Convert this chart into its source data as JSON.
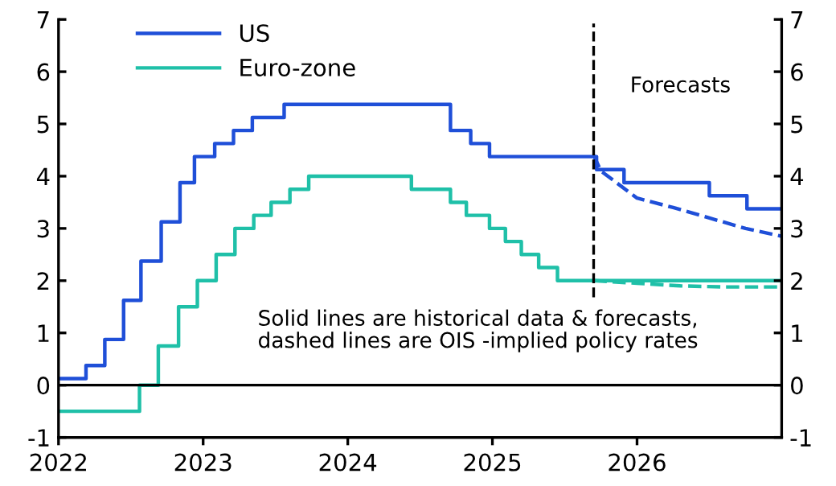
{
  "chart_data": {
    "type": "step",
    "xlim": [
      2022,
      2027
    ],
    "xticks": [
      2022,
      2023,
      2024,
      2025,
      2026
    ],
    "ylim": [
      -1,
      7
    ],
    "yticks": [
      -1,
      0,
      1,
      2,
      3,
      4,
      5,
      6,
      7
    ],
    "y2lim": [
      -1,
      7
    ],
    "y2ticks": [
      -1,
      0,
      1,
      2,
      3,
      4,
      5,
      6,
      7
    ],
    "grid": false,
    "legend": "top left",
    "marker": "none",
    "series": [
      {
        "name": "US",
        "color": "#1f4fd8",
        "line_style": "solid",
        "x": [
          2022,
          2022.19,
          2022.32,
          2022.45,
          2022.57,
          2022.71,
          2022.84,
          2022.94,
          2023.08,
          2023.21,
          2023.34,
          2023.56,
          2024.71,
          2024.85,
          2024.98,
          2025.72,
          2025.91,
          2026.5,
          2026.76,
          2027
        ],
        "values": [
          0.125,
          0.375,
          0.875,
          1.625,
          2.375,
          3.125,
          3.875,
          4.375,
          4.625,
          4.875,
          5.125,
          5.375,
          4.875,
          4.625,
          4.375,
          4.125,
          3.875,
          3.625,
          3.375,
          3.375
        ]
      },
      {
        "name": "Euro-zone",
        "color": "#1fc0a8",
        "line_style": "solid",
        "x": [
          2022,
          2022.56,
          2022.69,
          2022.83,
          2022.96,
          2023.09,
          2023.22,
          2023.35,
          2023.47,
          2023.6,
          2023.73,
          2024.44,
          2024.71,
          2024.82,
          2024.98,
          2025.09,
          2025.2,
          2025.32,
          2025.45,
          2027
        ],
        "values": [
          -0.5,
          0,
          0.75,
          1.5,
          2.0,
          2.5,
          3.0,
          3.25,
          3.5,
          3.75,
          4.0,
          3.75,
          3.5,
          3.25,
          3.0,
          2.75,
          2.5,
          2.25,
          2.0,
          2.0
        ]
      },
      {
        "type": "line",
        "color": "#1f4fd8",
        "line_style": "dashed",
        "x": [
          2025.7,
          2025.75,
          2026.0,
          2026.25,
          2026.5,
          2026.75,
          2027
        ],
        "values": [
          4.4,
          4.1,
          3.58,
          3.4,
          3.2,
          3.0,
          2.85
        ]
      },
      {
        "type": "line",
        "color": "#1fc0a8",
        "line_style": "dashed",
        "x": [
          2025.7,
          2026.0,
          2026.3,
          2026.6,
          2027
        ],
        "values": [
          2.0,
          1.95,
          1.9,
          1.88,
          1.88
        ]
      }
    ],
    "ref_lines": [
      {
        "axis": "y",
        "value": 0,
        "color": "#000000",
        "line_style": "solid"
      },
      {
        "axis": "x",
        "value": 2025.7,
        "color": "#000000",
        "line_style": "dashed"
      }
    ],
    "annotations": [
      "Forecasts",
      "Solid lines are historical data & forecasts,\ndashed lines are OIS -implied policy rates"
    ]
  }
}
